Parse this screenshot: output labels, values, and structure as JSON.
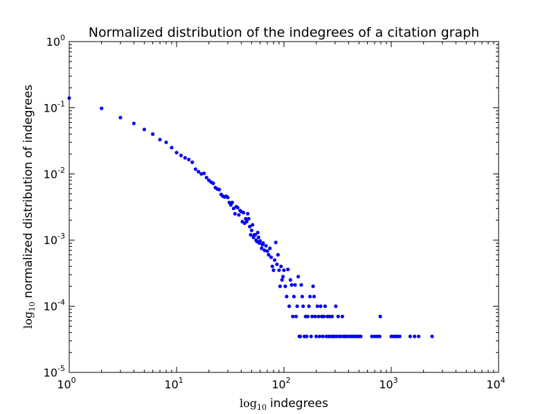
{
  "chart_data": {
    "type": "scatter",
    "title": "Normalized distribution of the indegrees of a citation graph",
    "xlabel": {
      "prefix": "log",
      "subscript": "10",
      "text": "indegrees"
    },
    "ylabel": {
      "prefix": "log",
      "subscript": "10",
      "text": "normalized distribution of indegrees"
    },
    "x_scale": "log",
    "y_scale": "log",
    "xlim": [
      1,
      10000
    ],
    "ylim": [
      1e-05,
      1
    ],
    "x_ticks": [
      {
        "value": 1,
        "base": "10",
        "exp": "0"
      },
      {
        "value": 10,
        "base": "10",
        "exp": "1"
      },
      {
        "value": 100,
        "base": "10",
        "exp": "2"
      },
      {
        "value": 1000,
        "base": "10",
        "exp": "3"
      },
      {
        "value": 10000,
        "base": "10",
        "exp": "4"
      }
    ],
    "y_ticks": [
      {
        "value": 1,
        "base": "10",
        "exp": "0"
      },
      {
        "value": 0.1,
        "base": "10",
        "exp": "-1"
      },
      {
        "value": 0.01,
        "base": "10",
        "exp": "-2"
      },
      {
        "value": 0.001,
        "base": "10",
        "exp": "-3"
      },
      {
        "value": 0.0001,
        "base": "10",
        "exp": "-4"
      },
      {
        "value": 1e-05,
        "base": "10",
        "exp": "-5"
      }
    ],
    "grid": false,
    "marker_color": "#0000ff",
    "series": [
      {
        "points": [
          [
            1,
            0.14
          ],
          [
            2,
            0.098
          ],
          [
            3,
            0.071
          ],
          [
            4,
            0.058
          ],
          [
            5,
            0.047
          ],
          [
            6,
            0.04
          ],
          [
            7,
            0.033
          ],
          [
            8,
            0.03
          ],
          [
            9,
            0.025
          ],
          [
            10,
            0.021
          ],
          [
            11,
            0.019
          ],
          [
            12,
            0.0175
          ],
          [
            13,
            0.0165
          ],
          [
            14,
            0.015
          ],
          [
            15,
            0.0118
          ],
          [
            16,
            0.0108
          ],
          [
            17,
            0.01
          ],
          [
            18,
            0.0102
          ],
          [
            19,
            0.0088
          ],
          [
            20,
            0.008
          ],
          [
            21,
            0.0075
          ],
          [
            22,
            0.0072
          ],
          [
            23,
            0.0062
          ],
          [
            24,
            0.0059
          ],
          [
            25,
            0.0058
          ],
          [
            26,
            0.0049
          ],
          [
            27,
            0.0046
          ],
          [
            28,
            0.0045
          ],
          [
            29,
            0.0046
          ],
          [
            30,
            0.0044
          ],
          [
            31,
            0.0037
          ],
          [
            32,
            0.0034
          ],
          [
            33,
            0.0037
          ],
          [
            34,
            0.003
          ],
          [
            35,
            0.0025
          ],
          [
            36,
            0.0032
          ],
          [
            37,
            0.0031
          ],
          [
            38,
            0.0024
          ],
          [
            39,
            0.0028
          ],
          [
            40,
            0.0027
          ],
          [
            41,
            0.0019
          ],
          [
            42,
            0.0026
          ],
          [
            43,
            0.0018
          ],
          [
            44,
            0.0021
          ],
          [
            45,
            0.0019
          ],
          [
            46,
            0.0025
          ],
          [
            47,
            0.0021
          ],
          [
            48,
            0.0016
          ],
          [
            49,
            0.0012
          ],
          [
            50,
            0.0014
          ],
          [
            51,
            0.0017
          ],
          [
            52,
            0.0011
          ],
          [
            53,
            0.0012
          ],
          [
            54,
            0.0012
          ],
          [
            55,
            0.001
          ],
          [
            56,
            0.00095
          ],
          [
            57,
            0.0013
          ],
          [
            58,
            0.0011
          ],
          [
            59,
            0.0009
          ],
          [
            60,
            0.00097
          ],
          [
            62,
            0.00075
          ],
          [
            63,
            0.00085
          ],
          [
            64,
            0.0009
          ],
          [
            66,
            0.0007
          ],
          [
            68,
            0.00082
          ],
          [
            70,
            0.00068
          ],
          [
            72,
            0.0006
          ],
          [
            74,
            0.00075
          ],
          [
            76,
            0.00055
          ],
          [
            78,
            0.0004
          ],
          [
            80,
            0.00035
          ],
          [
            82,
            0.0005
          ],
          [
            84,
            0.00092
          ],
          [
            86,
            0.00043
          ],
          [
            88,
            0.0006
          ],
          [
            90,
            0.00035
          ],
          [
            92,
            0.0002
          ],
          [
            94,
            0.0004
          ],
          [
            96,
            0.00025
          ],
          [
            98,
            0.00028
          ],
          [
            100,
            0.00035
          ],
          [
            103,
            0.0002
          ],
          [
            106,
            0.00014
          ],
          [
            109,
            0.00036
          ],
          [
            112,
            0.0001
          ],
          [
            115,
            0.00025
          ],
          [
            118,
            0.00021
          ],
          [
            121,
            7e-05
          ],
          [
            124,
            0.00014
          ],
          [
            127,
            0.00021
          ],
          [
            130,
            7e-05
          ],
          [
            133,
            0.0001
          ],
          [
            136,
            0.00028
          ],
          [
            139,
            3.5e-05
          ],
          [
            142,
            3.5e-05
          ],
          [
            145,
            0.00021
          ],
          [
            148,
            0.00014
          ],
          [
            151,
            0.0001
          ],
          [
            155,
            3.5e-05
          ],
          [
            159,
            7e-05
          ],
          [
            163,
            3.5e-05
          ],
          [
            167,
            7e-05
          ],
          [
            171,
            0.0001
          ],
          [
            175,
            0.00014
          ],
          [
            179,
            3.5e-05
          ],
          [
            183,
            7e-05
          ],
          [
            187,
            0.0002
          ],
          [
            191,
            0.00014
          ],
          [
            195,
            7e-05
          ],
          [
            200,
            3.5e-05
          ],
          [
            205,
            0.0001
          ],
          [
            210,
            7e-05
          ],
          [
            215,
            3.5e-05
          ],
          [
            220,
            0.0001
          ],
          [
            225,
            7e-05
          ],
          [
            230,
            3.5e-05
          ],
          [
            236,
            7e-05
          ],
          [
            242,
            0.0001
          ],
          [
            248,
            3.5e-05
          ],
          [
            254,
            7e-05
          ],
          [
            260,
            3.5e-05
          ],
          [
            267,
            7e-05
          ],
          [
            274,
            3.5e-05
          ],
          [
            281,
            7e-05
          ],
          [
            288,
            3.5e-05
          ],
          [
            296,
            3.5e-05
          ],
          [
            304,
            0.0001
          ],
          [
            312,
            3.5e-05
          ],
          [
            320,
            7e-05
          ],
          [
            330,
            3.5e-05
          ],
          [
            340,
            3.5e-05
          ],
          [
            350,
            7e-05
          ],
          [
            360,
            3.5e-05
          ],
          [
            370,
            3.5e-05
          ],
          [
            380,
            3.5e-05
          ],
          [
            400,
            3.5e-05
          ],
          [
            420,
            3.5e-05
          ],
          [
            440,
            3.5e-05
          ],
          [
            460,
            3.5e-05
          ],
          [
            480,
            3.5e-05
          ],
          [
            500,
            3.5e-05
          ],
          [
            520,
            3.5e-05
          ],
          [
            660,
            3.5e-05
          ],
          [
            700,
            3.5e-05
          ],
          [
            740,
            3.5e-05
          ],
          [
            780,
            3.5e-05
          ],
          [
            790,
            7e-05
          ],
          [
            1000,
            3.5e-05
          ],
          [
            1050,
            3.5e-05
          ],
          [
            1100,
            3.5e-05
          ],
          [
            1140,
            3.5e-05
          ],
          [
            1200,
            3.5e-05
          ],
          [
            1500,
            3.5e-05
          ],
          [
            1650,
            3.5e-05
          ],
          [
            1800,
            3.5e-05
          ],
          [
            2400,
            3.5e-05
          ]
        ]
      }
    ]
  }
}
